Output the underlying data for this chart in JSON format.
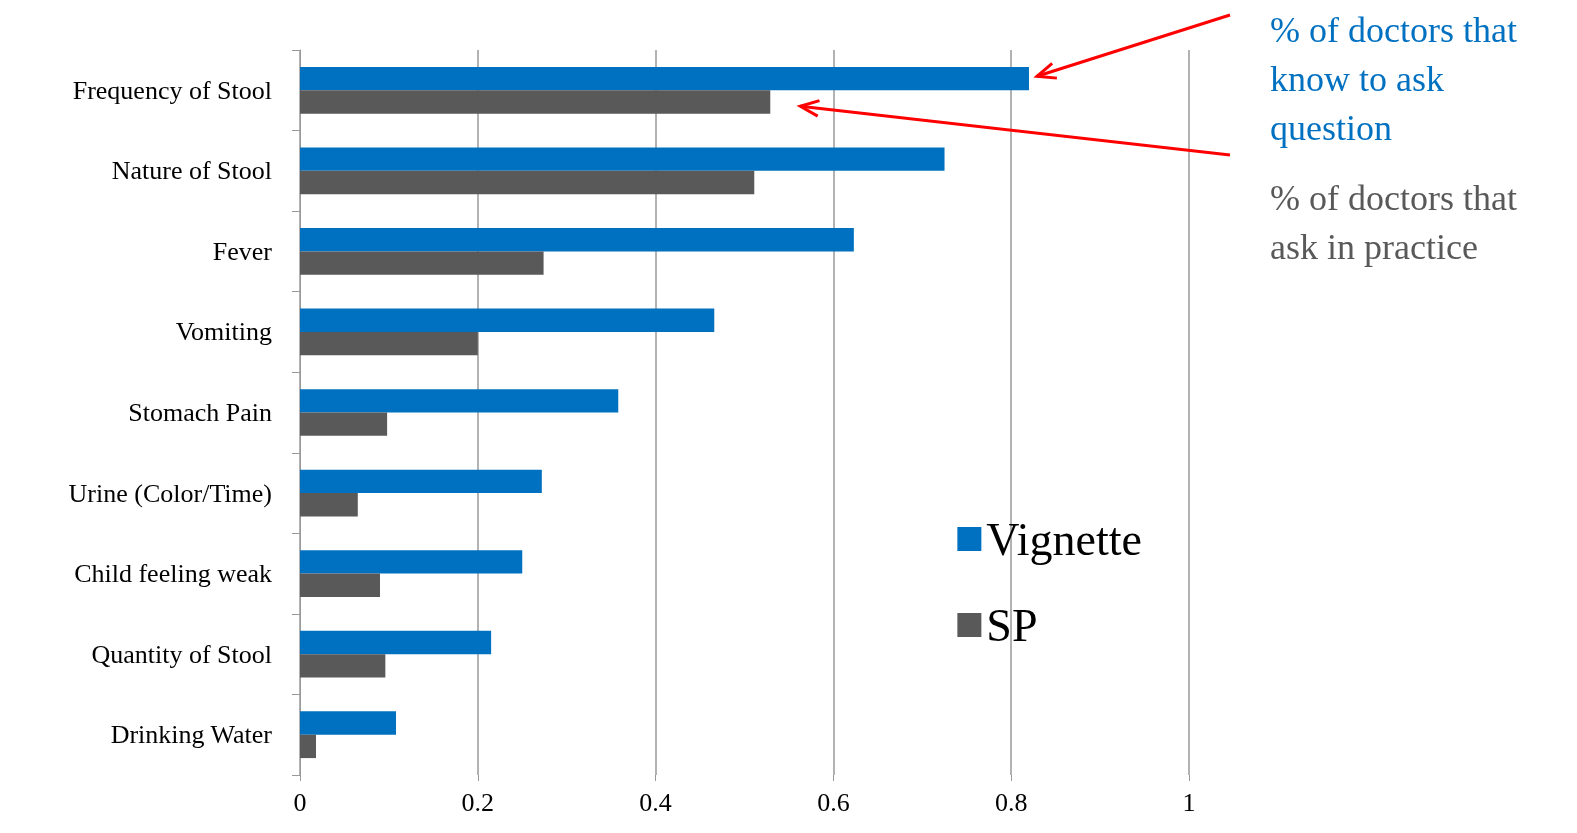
{
  "chart_data": {
    "type": "bar",
    "orientation": "horizontal",
    "categories": [
      "Frequency of Stool",
      "Nature of Stool",
      "Fever",
      "Vomiting",
      "Stomach Pain",
      "Urine (Color/Time)",
      "Child feeling weak",
      "Quantity of Stool",
      "Drinking Water"
    ],
    "series": [
      {
        "name": "Vignette",
        "color": "#0070c0",
        "values": [
          0.82,
          0.725,
          0.623,
          0.466,
          0.358,
          0.272,
          0.25,
          0.215,
          0.108
        ]
      },
      {
        "name": "SP",
        "color": "#595959",
        "values": [
          0.529,
          0.511,
          0.274,
          0.2,
          0.098,
          0.065,
          0.09,
          0.096,
          0.018
        ]
      }
    ],
    "xlim": [
      0,
      1
    ],
    "xticks": [
      0,
      0.2,
      0.4,
      0.6,
      0.8,
      1
    ],
    "grid": "x",
    "legend": "bottom right",
    "annotations": [
      "% of doctors that know to ask question",
      "% of doctors that ask in practice"
    ]
  }
}
